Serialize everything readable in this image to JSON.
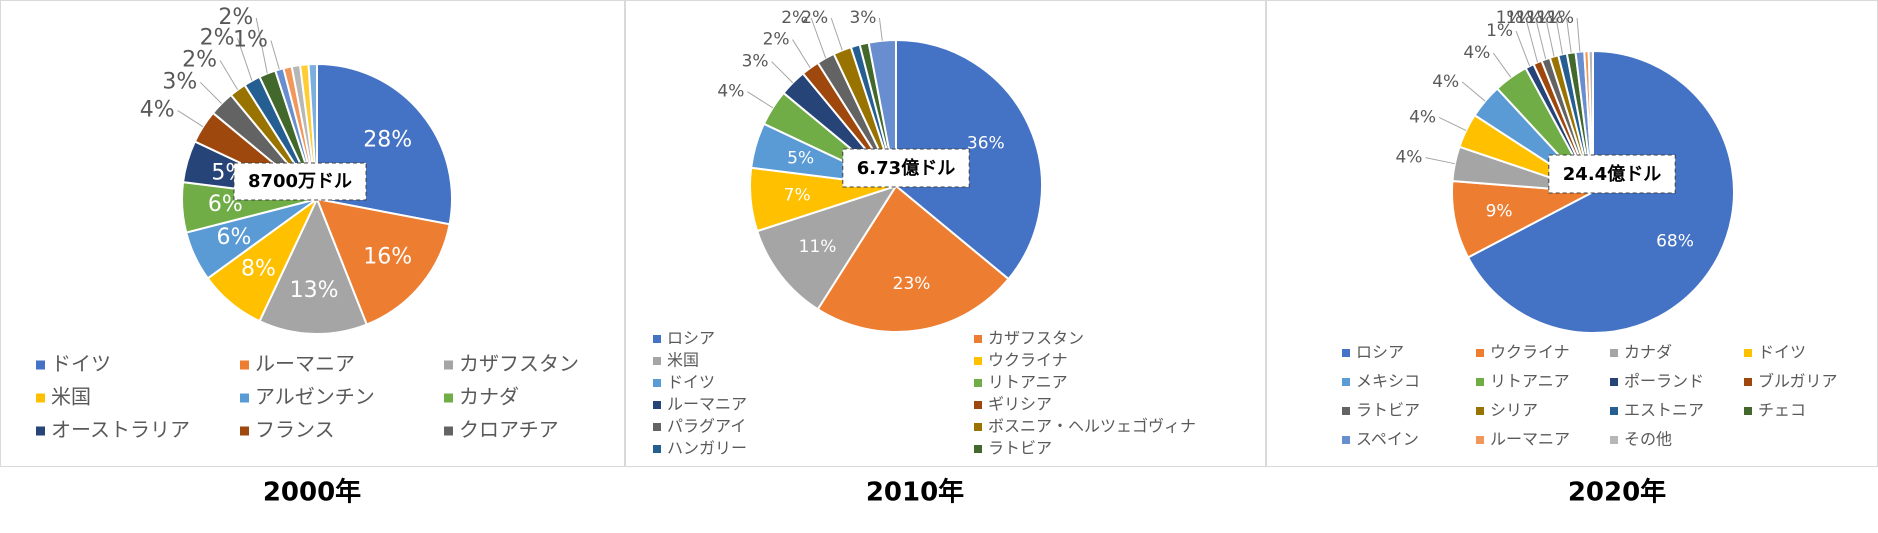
{
  "chart_data": [
    {
      "type": "pie",
      "title": "2000年",
      "annotation": "8700万ドル",
      "categories": [
        "ドイツ",
        "ルーマニア",
        "カザフスタン",
        "米国",
        "アルゼンチン",
        "カナダ",
        "オーストラリア",
        "フランス",
        "クロアチア",
        null,
        null,
        null,
        null,
        null,
        null,
        null,
        null
      ],
      "values": [
        28,
        16,
        13,
        8,
        6,
        6,
        5,
        4,
        3,
        2,
        2,
        2,
        1,
        1,
        1,
        1,
        1
      ],
      "value_labels": [
        "28%",
        "16%",
        "13%",
        "8%",
        "6%",
        "6%",
        "5%",
        "4%",
        "3%",
        "2%",
        "2%",
        "2%",
        "1%",
        null,
        null,
        null,
        null
      ],
      "colors": [
        "#4472c4",
        "#ed7d31",
        "#a5a5a5",
        "#ffc000",
        "#5b9bd5",
        "#70ad47",
        "#264478",
        "#9e480e",
        "#636363",
        "#997300",
        "#255e91",
        "#43682b",
        "#698ed0",
        "#f1975a",
        "#b7b7b7",
        "#ffcd33",
        "#7cafdd"
      ]
    },
    {
      "type": "pie",
      "title": "2010年",
      "annotation": "6.73億ドル",
      "categories": [
        "ロシア",
        "カザフスタン",
        "米国",
        "ウクライナ",
        "ドイツ",
        "リトアニア",
        "ルーマニア",
        "ギリシア",
        "パラグアイ",
        "ボスニア・ヘルツェゴヴィナ",
        "ハンガリー",
        "ラトビア",
        null
      ],
      "values": [
        36,
        23,
        11,
        7,
        5,
        4,
        3,
        2,
        2,
        2,
        1,
        1,
        3
      ],
      "value_labels": [
        "36%",
        "23%",
        "11%",
        "7%",
        "5%",
        "4%",
        "3%",
        "2%",
        "2%",
        "2%",
        null,
        null,
        "3%"
      ],
      "colors": [
        "#4472c4",
        "#ed7d31",
        "#a5a5a5",
        "#ffc000",
        "#5b9bd5",
        "#70ad47",
        "#264478",
        "#9e480e",
        "#636363",
        "#997300",
        "#255e91",
        "#43682b",
        "#698ed0"
      ]
    },
    {
      "type": "pie",
      "title": "2020年",
      "annotation": "24.4億ドル",
      "categories": [
        "ロシア",
        "ウクライナ",
        "カナダ",
        "ドイツ",
        "メキシコ",
        "リトアニア",
        "ポーランド",
        "ブルガリア",
        "ラトビア",
        "シリア",
        "エストニア",
        "チェコ",
        "スペイン",
        "ルーマニア",
        "その他"
      ],
      "values": [
        68,
        9,
        4,
        4,
        4,
        4,
        1,
        1,
        1,
        1,
        1,
        1,
        1,
        0.5,
        0.5
      ],
      "value_labels": [
        "68%",
        "9%",
        "4%",
        "4%",
        "4%",
        "4%",
        "1%",
        "1%",
        "1%",
        "1%",
        "1%",
        "1%",
        "1%",
        null,
        null
      ],
      "colors": [
        "#4472c4",
        "#ed7d31",
        "#a5a5a5",
        "#ffc000",
        "#5b9bd5",
        "#70ad47",
        "#264478",
        "#9e480e",
        "#636363",
        "#997300",
        "#255e91",
        "#43682b",
        "#698ed0",
        "#f1975a",
        "#b7b7b7"
      ]
    }
  ]
}
